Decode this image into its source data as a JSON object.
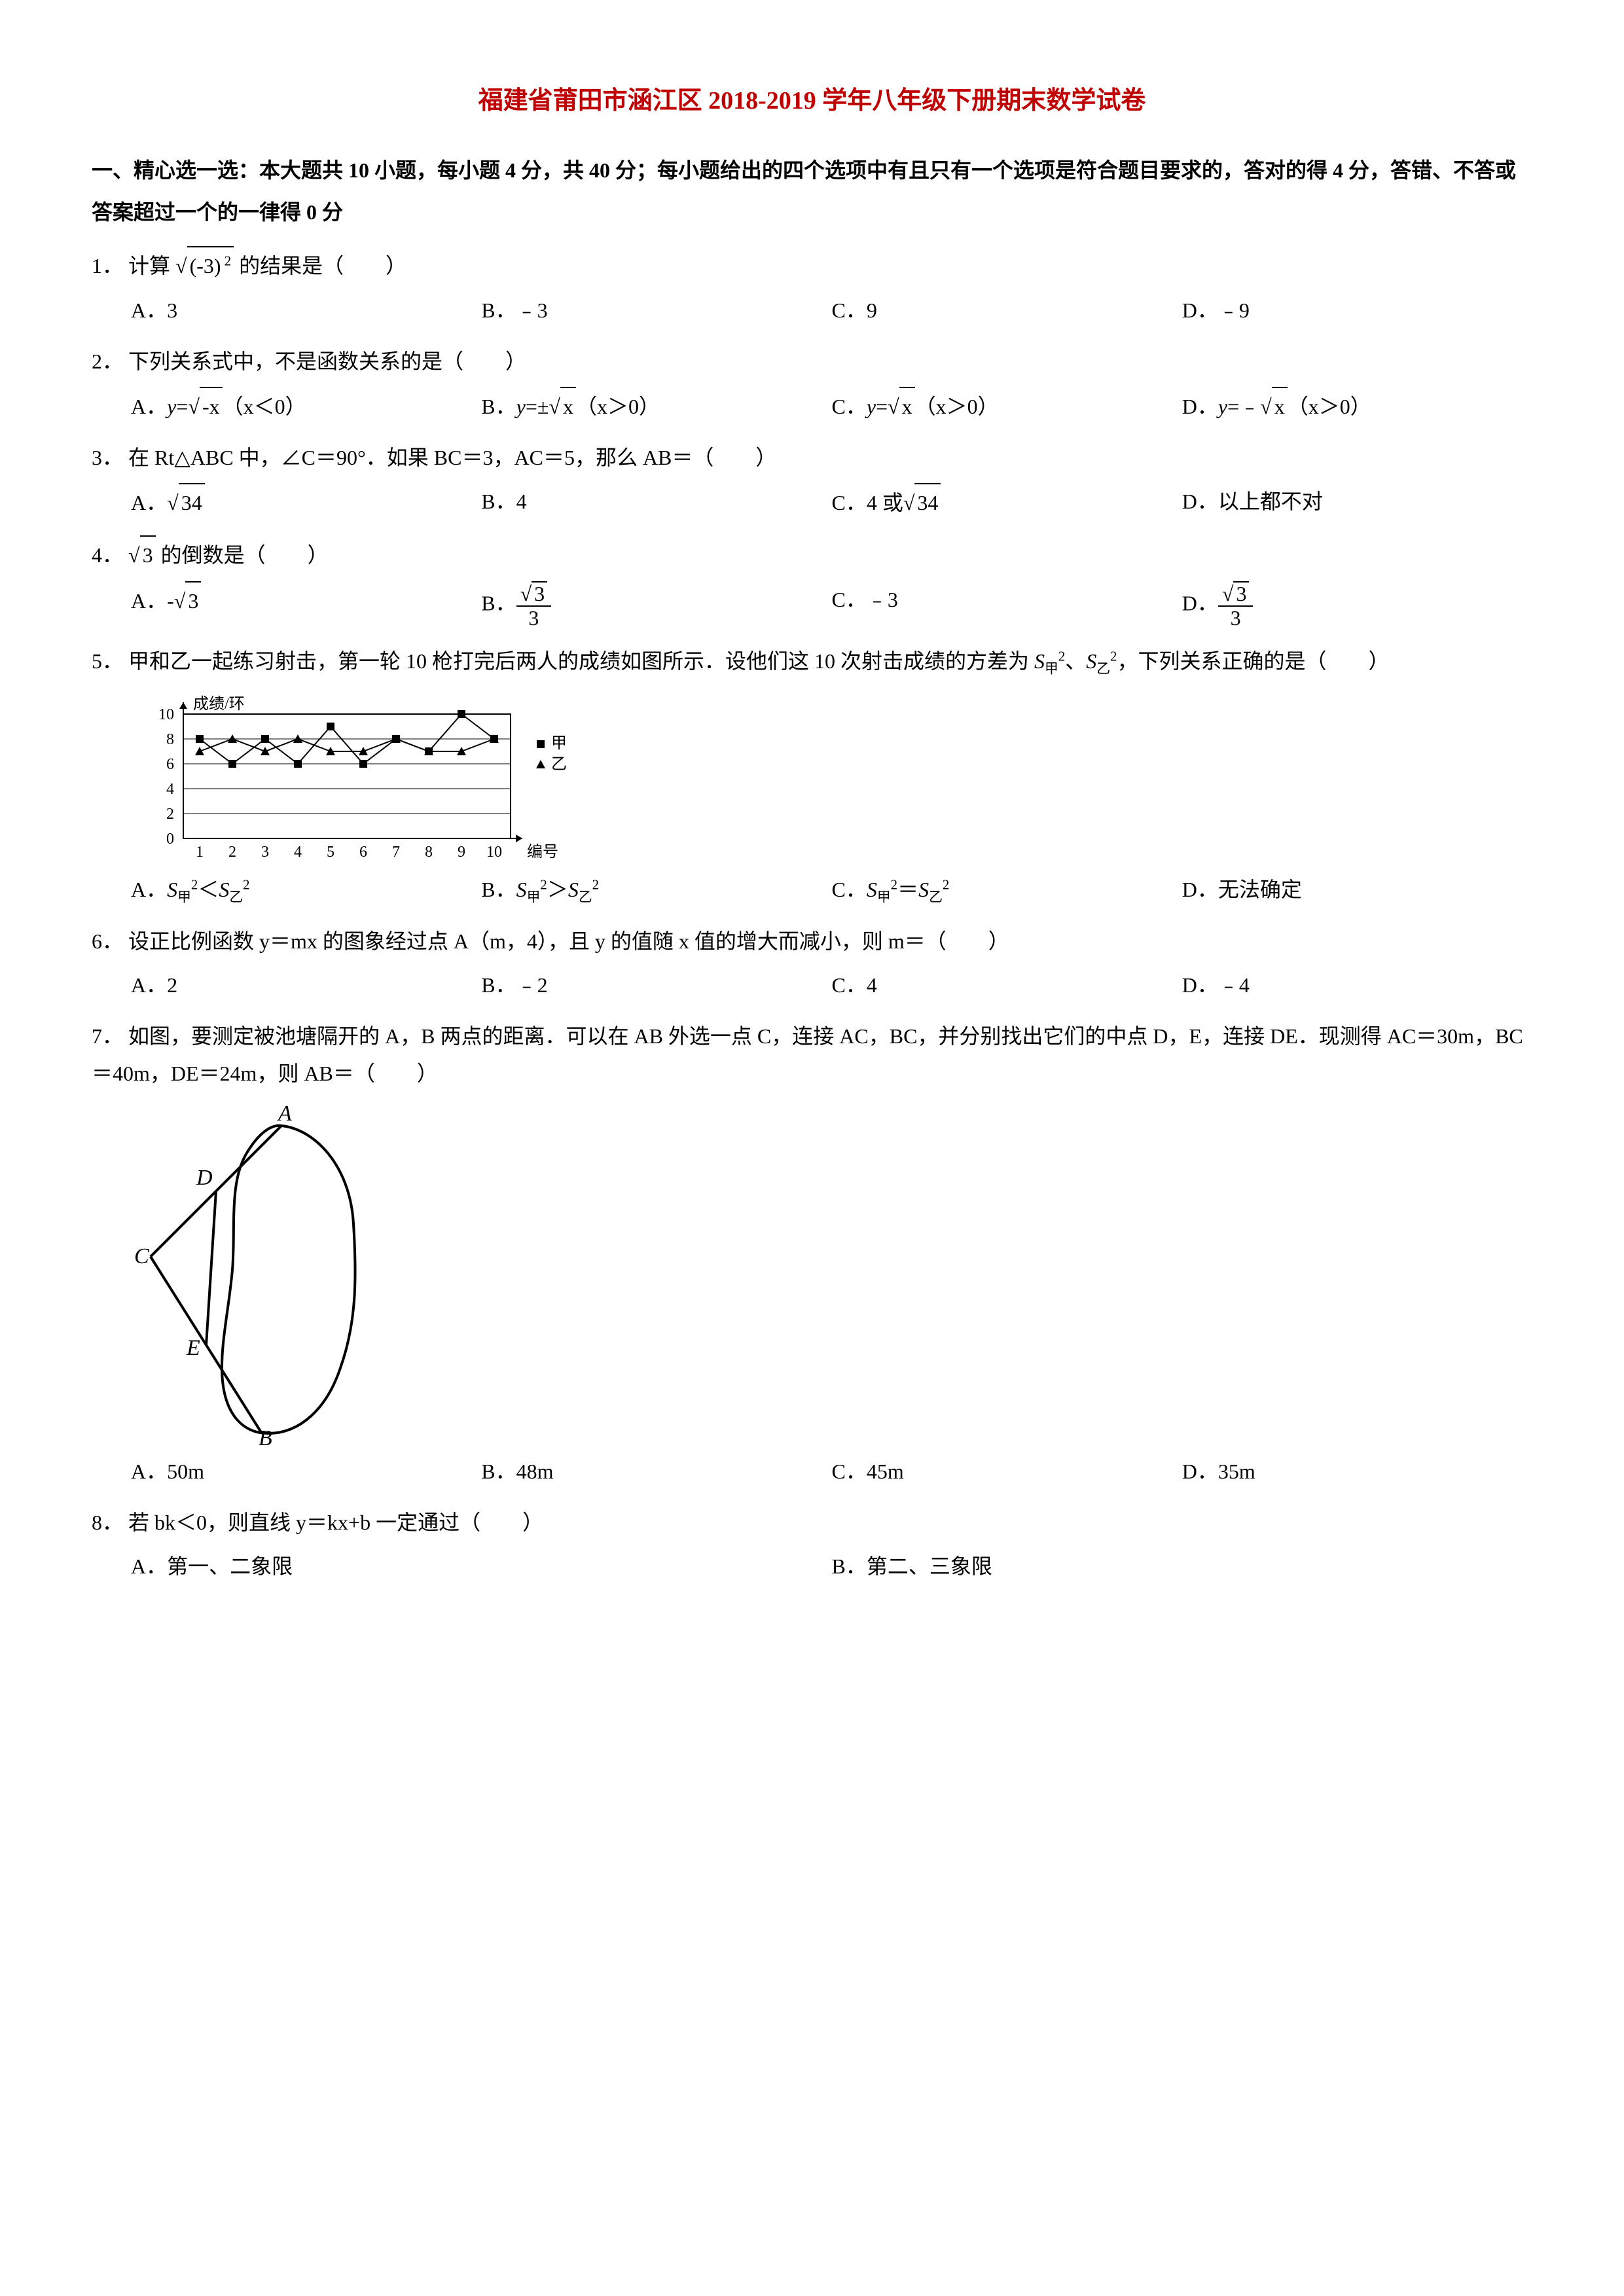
{
  "title": "福建省莆田市涵江区 2018-2019 学年八年级下册期末数学试卷",
  "section1_header": "一、精心选一选：本大题共 10 小题，每小题 4 分，共 40 分；每小题给出的四个选项中有且只有一个选项是符合题目要求的，答对的得 4 分，答错、不答或答案超过一个的一律得 0 分",
  "q1": {
    "num": "1．",
    "text_pre": "计算",
    "text_post": "的结果是（　　）",
    "A": "A．3",
    "B": "B．﹣3",
    "C": "C．9",
    "D": "D．﹣9"
  },
  "q2": {
    "num": "2．",
    "text": "下列关系式中，不是函数关系的是（　　）",
    "A_pre": "A．",
    "A_tail": "（x＜0）",
    "B_pre": "B．",
    "B_tail": "（x＞0）",
    "C_pre": "C．",
    "C_tail": "（x＞0）",
    "D_pre": "D．",
    "D_tail": "（x＞0）"
  },
  "q3": {
    "num": "3．",
    "text": "在 Rt△ABC 中，∠C＝90°．如果 BC＝3，AC＝5，那么 AB＝（　　）",
    "A": "A．",
    "B": "B．4",
    "C_pre": "C．4 或",
    "D": "D．以上都不对"
  },
  "q4": {
    "num": "4．",
    "text_post": "的倒数是（　　）",
    "A": "A．",
    "B": "B．",
    "C": "C．﹣3",
    "D": "D．"
  },
  "q5": {
    "num": "5．",
    "text_pre": "甲和乙一起练习射击，第一轮 10 枪打完后两人的成绩如图所示．设他们这 10 次射击成绩的方差为 ",
    "text_mid": "、",
    "text_post": "，下列关系正确的是（　　）",
    "A": "A．",
    "B": "B．",
    "C": "C．",
    "D": "D．无法确定",
    "chart": {
      "y_label": "成绩/环",
      "x_label": "编号",
      "y_ticks": [
        "0",
        "2",
        "4",
        "6",
        "8",
        "10"
      ],
      "x_ticks": [
        "1",
        "2",
        "3",
        "4",
        "5",
        "6",
        "7",
        "8",
        "9",
        "10"
      ],
      "legend_a": "甲",
      "legend_b": "乙",
      "series_a": [
        8,
        6,
        8,
        6,
        9,
        6,
        8,
        7,
        10,
        8
      ],
      "series_b": [
        7,
        8,
        7,
        8,
        7,
        7,
        8,
        7,
        7,
        8
      ],
      "colors": {
        "axis": "#000000",
        "grid": "#000000",
        "bg": "#ffffff"
      }
    }
  },
  "q6": {
    "num": "6．",
    "text": "设正比例函数 y＝mx 的图象经过点 A（m，4），且 y 的值随 x 值的增大而减小，则 m＝（　　）",
    "A": "A．2",
    "B": "B．﹣2",
    "C": "C．4",
    "D": "D．﹣4"
  },
  "q7": {
    "num": "7．",
    "text": "如图，要测定被池塘隔开的 A，B 两点的距离．可以在 AB 外选一点 C，连接 AC，BC，并分别找出它们的中点 D，E，连接 DE．现测得 AC＝30m，BC＝40m，DE＝24m，则 AB＝（　　）",
    "A": "A．50m",
    "B": "B．48m",
    "C": "C．45m",
    "D": "D．35m",
    "labels": {
      "A": "A",
      "B": "B",
      "C": "C",
      "D": "D",
      "E": "E"
    }
  },
  "q8": {
    "num": "8．",
    "text": "若 bk＜0，则直线 y＝kx+b 一定通过（　　）",
    "A": "A．第一、二象限",
    "B": "B．第二、三象限"
  }
}
